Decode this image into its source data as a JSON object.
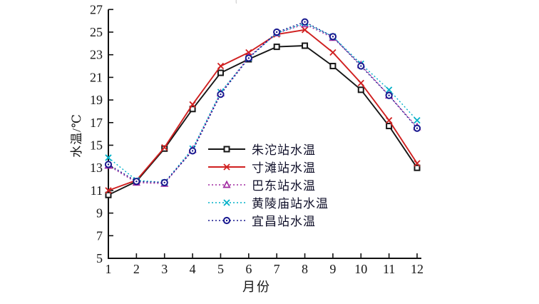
{
  "page": {
    "background": "#ffffff",
    "title_fragment": "("
  },
  "chart_data": {
    "type": "line",
    "title": "",
    "xlabel": "月份",
    "ylabel": "水温/℃",
    "x": [
      1,
      2,
      3,
      4,
      5,
      6,
      7,
      8,
      9,
      10,
      11,
      12
    ],
    "xlim": [
      1,
      12
    ],
    "ylim": [
      5,
      27
    ],
    "ytick_step": 2,
    "grid": false,
    "legend_position": "inside-center-right",
    "axis_color": "#111111",
    "series": [
      {
        "name": "朱沱站水温",
        "color": "#161616",
        "line": "solid",
        "marker": "square",
        "values": [
          10.6,
          11.8,
          14.7,
          18.2,
          21.4,
          22.6,
          23.7,
          23.8,
          22.0,
          19.9,
          16.7,
          13.0
        ]
      },
      {
        "name": "寸滩站水温",
        "color": "#d02020",
        "line": "solid",
        "marker": "x",
        "values": [
          11.0,
          11.9,
          14.8,
          18.6,
          22.0,
          23.2,
          24.8,
          25.2,
          23.2,
          20.5,
          17.2,
          13.4
        ]
      },
      {
        "name": "巴东站水温",
        "color": "#a028a0",
        "line": "dotted",
        "marker": "triangle",
        "values": [
          13.2,
          11.7,
          11.6,
          14.6,
          19.6,
          22.8,
          24.9,
          25.7,
          24.5,
          22.1,
          19.4,
          16.6
        ]
      },
      {
        "name": "黄陵庙站水温",
        "color": "#00b0c8",
        "line": "dotted",
        "marker": "x",
        "values": [
          13.9,
          11.9,
          11.7,
          14.7,
          19.7,
          22.7,
          24.9,
          25.8,
          24.6,
          22.2,
          19.9,
          17.2
        ]
      },
      {
        "name": "宜昌站水温",
        "color": "#18188f",
        "line": "dotted",
        "marker": "circle-dot",
        "values": [
          13.3,
          11.8,
          11.7,
          14.5,
          19.5,
          22.7,
          25.0,
          25.9,
          24.6,
          22.0,
          19.4,
          16.5
        ]
      }
    ]
  }
}
